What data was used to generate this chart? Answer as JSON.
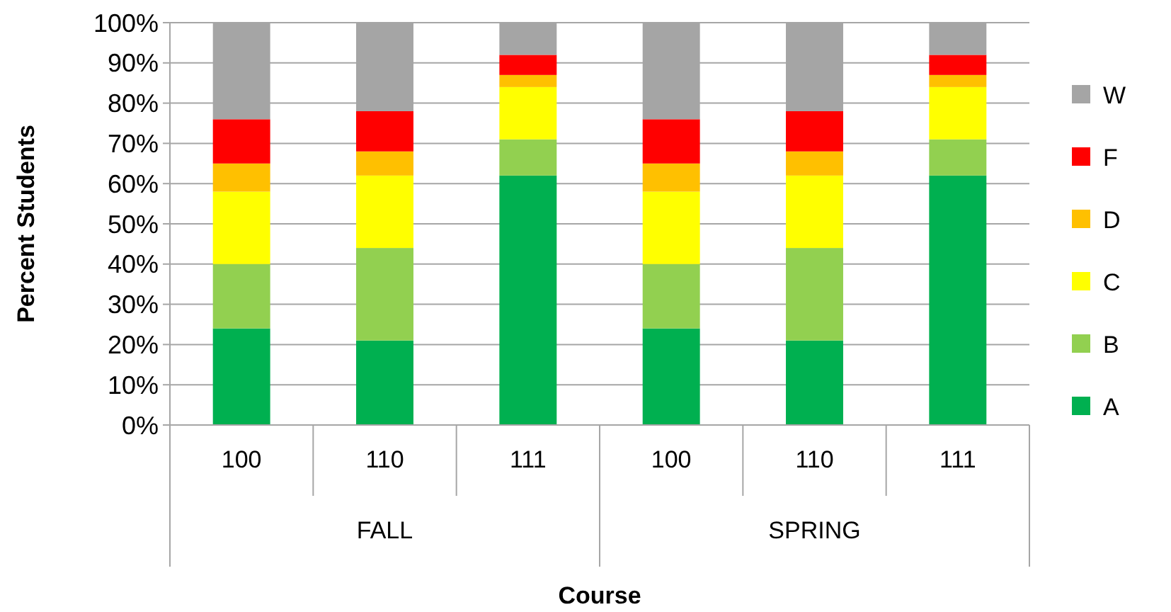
{
  "chart_data": {
    "type": "bar",
    "stacked": true,
    "xlabel": "Course",
    "ylabel": "Percent Students",
    "categories": [
      "100",
      "110",
      "111",
      "100",
      "110",
      "111"
    ],
    "annotations": [
      "FALL",
      "SPRING"
    ],
    "series": [
      {
        "name": "A",
        "color": "#00b050",
        "values": [
          24,
          21,
          62,
          24,
          21,
          62
        ]
      },
      {
        "name": "B",
        "color": "#92d050",
        "values": [
          16,
          23,
          9,
          16,
          23,
          9
        ]
      },
      {
        "name": "C",
        "color": "#ffff00",
        "values": [
          18,
          18,
          13,
          18,
          18,
          13
        ]
      },
      {
        "name": "D",
        "color": "#ffc000",
        "values": [
          7,
          6,
          3,
          7,
          6,
          3
        ]
      },
      {
        "name": "F",
        "color": "#ff0000",
        "values": [
          11,
          10,
          5,
          11,
          10,
          5
        ]
      },
      {
        "name": "W",
        "color": "#a5a5a5",
        "values": [
          24,
          22,
          8,
          24,
          22,
          8
        ]
      }
    ],
    "ylim": [
      0,
      100
    ],
    "yticks": [
      {
        "value": 0,
        "label": "0%"
      },
      {
        "value": 10,
        "label": "10%"
      },
      {
        "value": 20,
        "label": "20%"
      },
      {
        "value": 30,
        "label": "30%"
      },
      {
        "value": 40,
        "label": "40%"
      },
      {
        "value": 50,
        "label": "50%"
      },
      {
        "value": 60,
        "label": "60%"
      },
      {
        "value": 70,
        "label": "70%"
      },
      {
        "value": 80,
        "label": "80%"
      },
      {
        "value": 90,
        "label": "90%"
      },
      {
        "value": 100,
        "label": "100%"
      }
    ],
    "grid": "y",
    "legend": "right"
  }
}
